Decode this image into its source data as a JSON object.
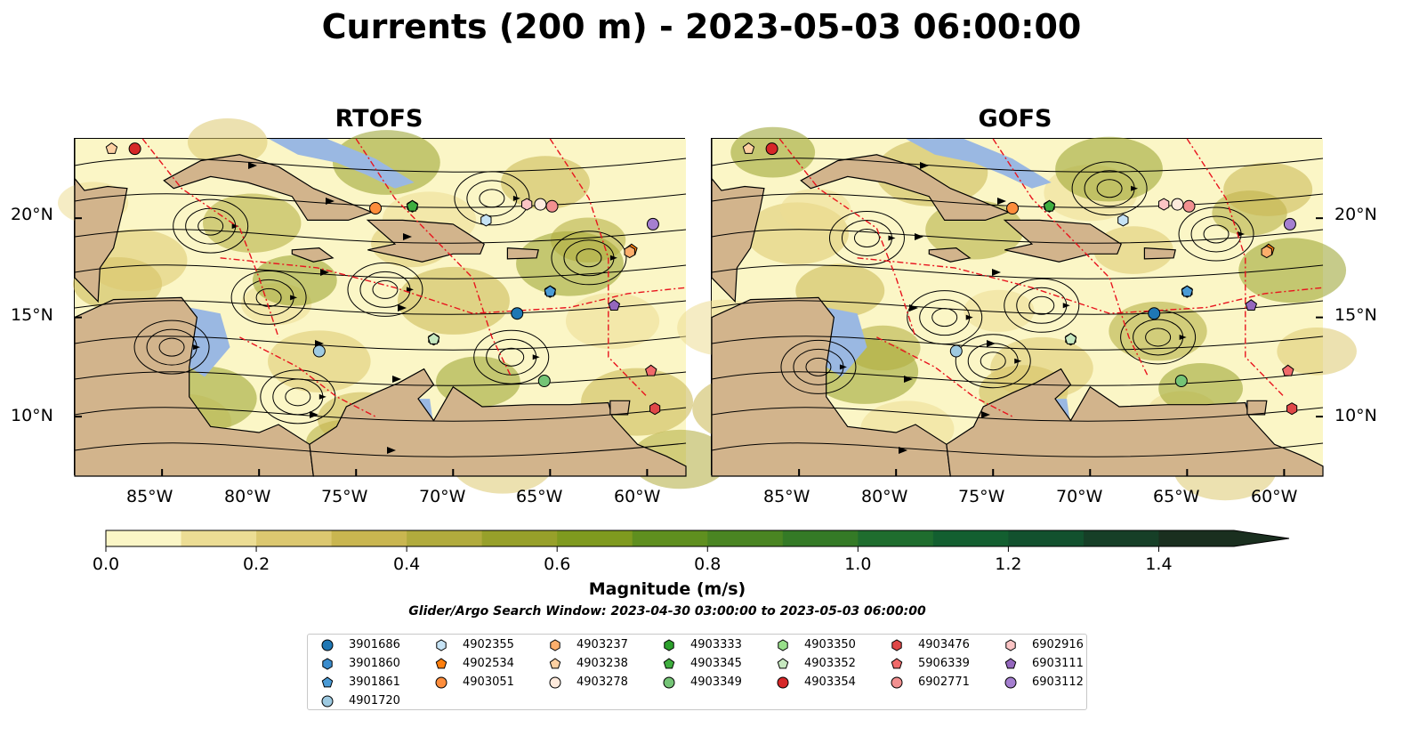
{
  "title": "Currents (200 m) - 2023-05-03 06:00:00",
  "panels": [
    {
      "title": "RTOFS"
    },
    {
      "title": "GOFS"
    }
  ],
  "axes": {
    "lon_ticks": [
      "85°W",
      "80°W",
      "75°W",
      "70°W",
      "65°W",
      "60°W"
    ],
    "lat_ticks": [
      "20°N",
      "15°N",
      "10°N"
    ]
  },
  "chart_data": {
    "type": "heatmap",
    "xlim": [
      -89.5,
      -58
    ],
    "ylim": [
      7,
      24
    ],
    "variable": "Magnitude (m/s)",
    "colorbar": {
      "label": "Magnitude (m/s)",
      "min": 0.0,
      "max": 1.5,
      "step": 0.1,
      "extend": "max",
      "tick_values": [
        0.0,
        0.2,
        0.4,
        0.6,
        0.8,
        1.0,
        1.2,
        1.4
      ],
      "tick_labels": [
        "0.0",
        "0.2",
        "0.4",
        "0.6",
        "0.8",
        "1.0",
        "1.2",
        "1.4"
      ],
      "colors": [
        "#fbf6c6",
        "#ecdd94",
        "#dcc870",
        "#c9b650",
        "#b1ab3d",
        "#97a02a",
        "#7f9a1f",
        "#5f8f1f",
        "#4a8522",
        "#347a26",
        "#1f6d2e",
        "#135f30",
        "#12512e",
        "#163f27",
        "#1a2f1f"
      ]
    },
    "floats": [
      {
        "id": "3901686",
        "lon": -66.7,
        "lat": 15.2,
        "marker": "circle",
        "color": "#1f77b4"
      },
      {
        "id": "3901860",
        "lon": -65.0,
        "lat": 16.3,
        "marker": "hexagon",
        "color": "#3a8ccd"
      },
      {
        "id": "3901861",
        "lon": -65.0,
        "lat": 16.3,
        "marker": "pentagon",
        "color": "#4a9bd6"
      },
      {
        "id": "4901720",
        "lon": -76.9,
        "lat": 13.3,
        "marker": "circle",
        "color": "#9ecae1"
      },
      {
        "id": "4902355",
        "lon": -68.3,
        "lat": 19.9,
        "marker": "hexagon",
        "color": "#c6e3f5"
      },
      {
        "id": "4902534",
        "lon": -60.8,
        "lat": 18.4,
        "marker": "pentagon",
        "color": "#ff7f0e"
      },
      {
        "id": "4903051",
        "lon": -74.0,
        "lat": 20.5,
        "marker": "circle",
        "color": "#fd8d3c"
      },
      {
        "id": "4903237",
        "lon": -60.9,
        "lat": 18.3,
        "marker": "hexagon",
        "color": "#fdae6b"
      },
      {
        "id": "4903238",
        "lon": -87.6,
        "lat": 23.5,
        "marker": "pentagon",
        "color": "#fdd0a2"
      },
      {
        "id": "4903278",
        "lon": -65.5,
        "lat": 20.7,
        "marker": "circle",
        "color": "#feeadc"
      },
      {
        "id": "4903333",
        "lon": -72.1,
        "lat": 20.6,
        "marker": "hexagon",
        "color": "#2ca02c"
      },
      {
        "id": "4903345",
        "lon": -72.1,
        "lat": 20.6,
        "marker": "pentagon",
        "color": "#3fae3f"
      },
      {
        "id": "4903349",
        "lon": -65.3,
        "lat": 11.8,
        "marker": "circle",
        "color": "#74c476"
      },
      {
        "id": "4903350",
        "lon": -71.0,
        "lat": 13.9,
        "marker": "hexagon",
        "color": "#98df8a"
      },
      {
        "id": "4903352",
        "lon": -71.0,
        "lat": 13.9,
        "marker": "pentagon",
        "color": "#c7e9c0"
      },
      {
        "id": "4903354",
        "lon": -86.4,
        "lat": 23.5,
        "marker": "circle",
        "color": "#d62728"
      },
      {
        "id": "4903476",
        "lon": -59.6,
        "lat": 10.4,
        "marker": "hexagon",
        "color": "#e04848"
      },
      {
        "id": "5906339",
        "lon": -59.8,
        "lat": 12.3,
        "marker": "pentagon",
        "color": "#f06a6a"
      },
      {
        "id": "6902771",
        "lon": -64.9,
        "lat": 20.6,
        "marker": "circle",
        "color": "#f29090"
      },
      {
        "id": "6902916",
        "lon": -66.2,
        "lat": 20.7,
        "marker": "hexagon",
        "color": "#fbc4c4"
      },
      {
        "id": "6903111",
        "lon": -61.7,
        "lat": 15.6,
        "marker": "pentagon",
        "color": "#9467bd"
      },
      {
        "id": "6903112",
        "lon": -59.7,
        "lat": 19.7,
        "marker": "circle",
        "color": "#a57fd0"
      }
    ]
  },
  "colorbar_label": "Magnitude (m/s)",
  "search_window": "Glider/Argo Search Window: 2023-04-30 03:00:00 to 2023-05-03 06:00:00",
  "colors": {
    "ocean_low": "#fbf6c6",
    "land": "#d2b48c",
    "shallow_water": "#9ab8e2",
    "eez_line": "#e8141e",
    "streamline": "#000000"
  }
}
